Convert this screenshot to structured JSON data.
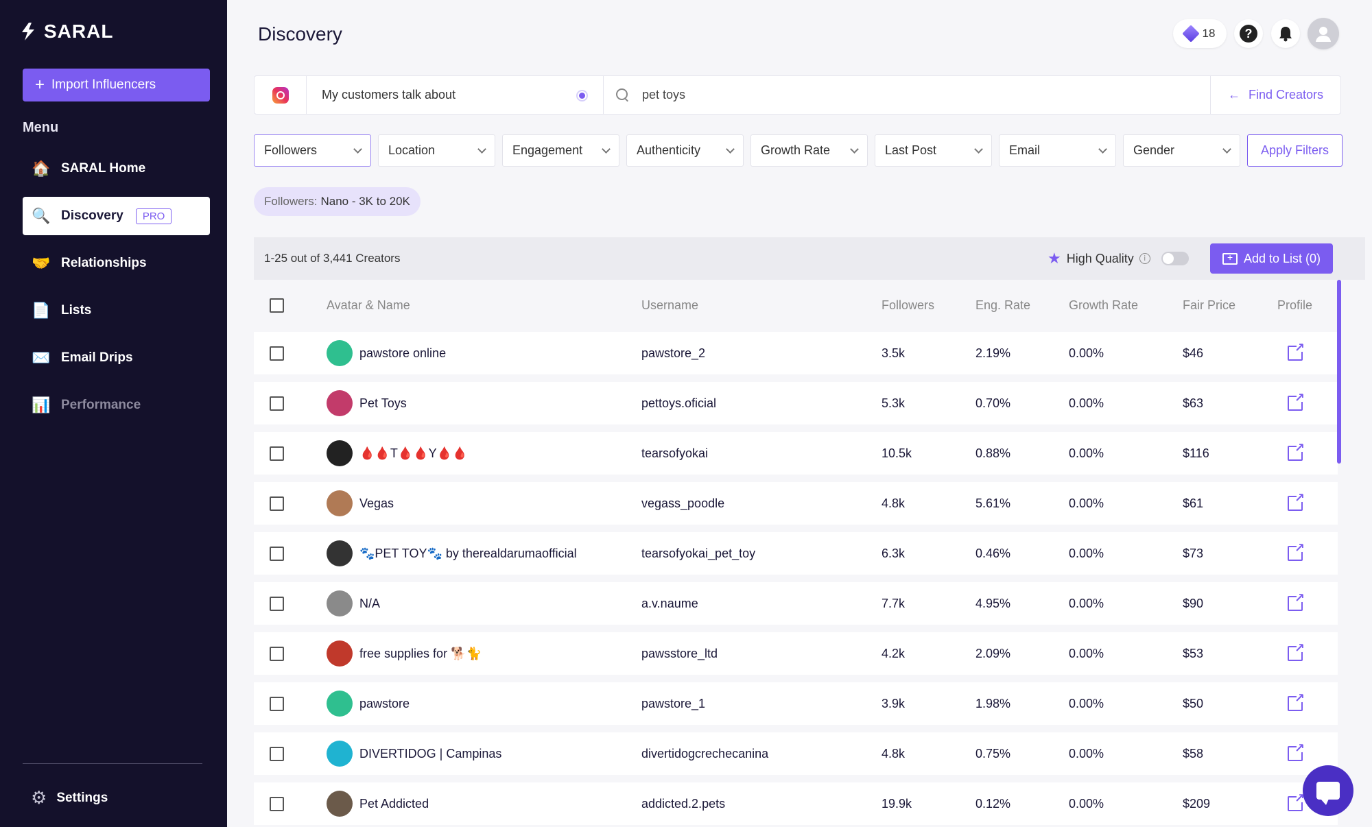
{
  "brand": {
    "name": "SARAL"
  },
  "sidebar": {
    "import_label": "Import Influencers",
    "menu_title": "Menu",
    "items": [
      {
        "label": "SARAL Home",
        "icon": "house-icon"
      },
      {
        "label": "Discovery",
        "icon": "search-icon",
        "badge": "PRO"
      },
      {
        "label": "Relationships",
        "icon": "handshake-icon"
      },
      {
        "label": "Lists",
        "icon": "document-icon"
      },
      {
        "label": "Email Drips",
        "icon": "envelope-icon"
      },
      {
        "label": "Performance",
        "icon": "chart-icon"
      }
    ],
    "settings_label": "Settings"
  },
  "header": {
    "title": "Discovery",
    "credits": "18"
  },
  "search": {
    "mode": "My customers talk about",
    "query": "pet toys",
    "find_label": "Find Creators"
  },
  "filters": [
    "Followers",
    "Location",
    "Engagement",
    "Authenticity",
    "Growth Rate",
    "Last Post",
    "Email",
    "Gender"
  ],
  "apply_label": "Apply Filters",
  "chip": {
    "key": "Followers:",
    "value": "Nano - 3K to 20K"
  },
  "results": {
    "count_text": "1-25 out of 3,441 Creators",
    "hq_label": "High Quality",
    "add_list_label": "Add to List (0)"
  },
  "table": {
    "headers": {
      "name": "Avatar & Name",
      "username": "Username",
      "followers": "Followers",
      "eng": "Eng. Rate",
      "growth": "Growth Rate",
      "price": "Fair Price",
      "profile": "Profile"
    },
    "rows": [
      {
        "name": "pawstore online",
        "username": "pawstore_2",
        "followers": "3.5k",
        "eng": "2.19%",
        "growth": "0.00%",
        "price": "$46",
        "avatar_color": "#2fbf8f"
      },
      {
        "name": "Pet Toys",
        "username": "pettoys.oficial",
        "followers": "5.3k",
        "eng": "0.70%",
        "growth": "0.00%",
        "price": "$63",
        "avatar_color": "#c23b6a"
      },
      {
        "name": "🩸🩸T🩸🩸Y🩸🩸",
        "username": "tearsofyokai",
        "followers": "10.5k",
        "eng": "0.88%",
        "growth": "0.00%",
        "price": "$116",
        "avatar_color": "#222222"
      },
      {
        "name": "Vegas",
        "username": "vegass_poodle",
        "followers": "4.8k",
        "eng": "5.61%",
        "growth": "0.00%",
        "price": "$61",
        "avatar_color": "#b07a55"
      },
      {
        "name": "🐾PET TOY🐾 by therealdarumaofficial",
        "username": "tearsofyokai_pet_toy",
        "followers": "6.3k",
        "eng": "0.46%",
        "growth": "0.00%",
        "price": "$73",
        "avatar_color": "#333333"
      },
      {
        "name": "N/A",
        "username": "a.v.naume",
        "followers": "7.7k",
        "eng": "4.95%",
        "growth": "0.00%",
        "price": "$90",
        "avatar_color": "#8a8a8a"
      },
      {
        "name": "free supplies for 🐕🐈",
        "username": "pawsstore_ltd",
        "followers": "4.2k",
        "eng": "2.09%",
        "growth": "0.00%",
        "price": "$53",
        "avatar_color": "#c0392b"
      },
      {
        "name": "pawstore",
        "username": "pawstore_1",
        "followers": "3.9k",
        "eng": "1.98%",
        "growth": "0.00%",
        "price": "$50",
        "avatar_color": "#2fbf8f"
      },
      {
        "name": "DIVERTIDOG | Campinas",
        "username": "divertidogcrechecanina",
        "followers": "4.8k",
        "eng": "0.75%",
        "growth": "0.00%",
        "price": "$58",
        "avatar_color": "#1fb3d1"
      },
      {
        "name": "Pet Addicted",
        "username": "addicted.2.pets",
        "followers": "19.9k",
        "eng": "0.12%",
        "growth": "0.00%",
        "price": "$209",
        "avatar_color": "#6b5a4a"
      }
    ]
  },
  "colors": {
    "accent": "#7b5cf0",
    "sidebar_bg": "#14112b"
  }
}
